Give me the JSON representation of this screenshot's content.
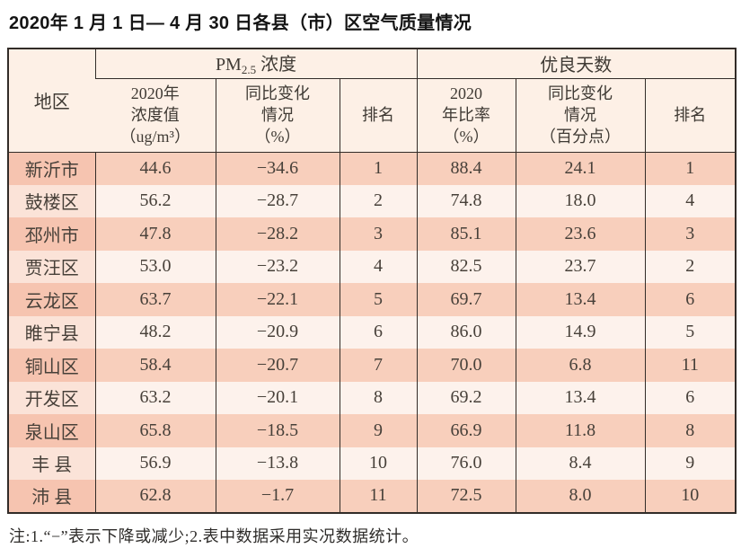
{
  "page": {
    "title": "2020年 1 月 1 日— 4 月 30 日各县（市）区空气质量情况",
    "note": "注:1.“−”表示下降或减少;2.表中数据采用实况数据统计。"
  },
  "header": {
    "region": "地区",
    "pm25_group_prefix": "PM",
    "pm25_group_sub": "2.5",
    "pm25_group_suffix": " 浓度",
    "good_days_group": "优良天数",
    "pm_value": "2020年\n浓度值\n（ug/m³）",
    "pm_change": "同比变化\n情况\n（%）",
    "pm_rank": "排名",
    "good_rate": "2020\n年比率\n（%）",
    "good_change": "同比变化\n情况\n（百分点）",
    "good_rank": "排名"
  },
  "chart_data": {
    "type": "table",
    "title": "2020年1月1日—4月30日各县（市）区空气质量情况",
    "column_groups": [
      "PM2.5浓度",
      "优良天数"
    ],
    "columns": [
      "地区",
      "2020年浓度值（ug/m³）",
      "同比变化情况（%）",
      "排名",
      "2020年比率（%）",
      "同比变化情况（百分点）",
      "排名"
    ],
    "column_keys": [
      "region",
      "pm25-value",
      "pm25-change",
      "pm25-rank",
      "good-rate",
      "good-change",
      "good-rank"
    ],
    "rows": [
      [
        "新沂市",
        "44.6",
        "−34.6",
        "1",
        "88.4",
        "24.1",
        "1"
      ],
      [
        "鼓楼区",
        "56.2",
        "−28.7",
        "2",
        "74.8",
        "18.0",
        "4"
      ],
      [
        "邳州市",
        "47.8",
        "−28.2",
        "3",
        "85.1",
        "23.6",
        "3"
      ],
      [
        "贾汪区",
        "53.0",
        "−23.2",
        "4",
        "82.5",
        "23.7",
        "2"
      ],
      [
        "云龙区",
        "63.7",
        "−22.1",
        "5",
        "69.7",
        "13.4",
        "6"
      ],
      [
        "睢宁县",
        "48.2",
        "−20.9",
        "6",
        "86.0",
        "14.9",
        "5"
      ],
      [
        "铜山区",
        "58.4",
        "−20.7",
        "7",
        "70.0",
        "6.8",
        "11"
      ],
      [
        "开发区",
        "63.2",
        "−20.1",
        "8",
        "69.2",
        "13.4",
        "6"
      ],
      [
        "泉山区",
        "65.8",
        "−18.5",
        "9",
        "66.9",
        "11.8",
        "8"
      ],
      [
        "丰 县",
        "56.9",
        "−13.8",
        "10",
        "76.0",
        "8.4",
        "9"
      ],
      [
        "沛 县",
        "62.8",
        "−1.7",
        "11",
        "72.5",
        "8.0",
        "10"
      ]
    ],
    "numeric_rows": [
      {
        "region": "新沂市",
        "pm25_value": 44.6,
        "pm25_change_pct": -34.6,
        "pm25_rank": 1,
        "good_rate_pct": 88.4,
        "good_change_pts": 24.1,
        "good_rank": 1
      },
      {
        "region": "鼓楼区",
        "pm25_value": 56.2,
        "pm25_change_pct": -28.7,
        "pm25_rank": 2,
        "good_rate_pct": 74.8,
        "good_change_pts": 18.0,
        "good_rank": 4
      },
      {
        "region": "邳州市",
        "pm25_value": 47.8,
        "pm25_change_pct": -28.2,
        "pm25_rank": 3,
        "good_rate_pct": 85.1,
        "good_change_pts": 23.6,
        "good_rank": 3
      },
      {
        "region": "贾汪区",
        "pm25_value": 53.0,
        "pm25_change_pct": -23.2,
        "pm25_rank": 4,
        "good_rate_pct": 82.5,
        "good_change_pts": 23.7,
        "good_rank": 2
      },
      {
        "region": "云龙区",
        "pm25_value": 63.7,
        "pm25_change_pct": -22.1,
        "pm25_rank": 5,
        "good_rate_pct": 69.7,
        "good_change_pts": 13.4,
        "good_rank": 6
      },
      {
        "region": "睢宁县",
        "pm25_value": 48.2,
        "pm25_change_pct": -20.9,
        "pm25_rank": 6,
        "good_rate_pct": 86.0,
        "good_change_pts": 14.9,
        "good_rank": 5
      },
      {
        "region": "铜山区",
        "pm25_value": 58.4,
        "pm25_change_pct": -20.7,
        "pm25_rank": 7,
        "good_rate_pct": 70.0,
        "good_change_pts": 6.8,
        "good_rank": 11
      },
      {
        "region": "开发区",
        "pm25_value": 63.2,
        "pm25_change_pct": -20.1,
        "pm25_rank": 8,
        "good_rate_pct": 69.2,
        "good_change_pts": 13.4,
        "good_rank": 6
      },
      {
        "region": "泉山区",
        "pm25_value": 65.8,
        "pm25_change_pct": -18.5,
        "pm25_rank": 9,
        "good_rate_pct": 66.9,
        "good_change_pts": 11.8,
        "good_rank": 8
      },
      {
        "region": "丰县",
        "pm25_value": 56.9,
        "pm25_change_pct": -13.8,
        "pm25_rank": 10,
        "good_rate_pct": 76.0,
        "good_change_pts": 8.4,
        "good_rank": 9
      },
      {
        "region": "沛县",
        "pm25_value": 62.8,
        "pm25_change_pct": -1.7,
        "pm25_rank": 11,
        "good_rate_pct": 72.5,
        "good_change_pts": 8.0,
        "good_rank": 10
      }
    ]
  },
  "colors": {
    "row_stripe_dark": "#f8cfbc",
    "row_stripe_light": "#fdf2ec",
    "region_stripe_dark": "#f6c4b0",
    "region_stripe_light": "#fbe3d8",
    "header_bg": "#fdf0e6",
    "border": "#322c28",
    "text": "#474039",
    "title_text": "#141414"
  }
}
